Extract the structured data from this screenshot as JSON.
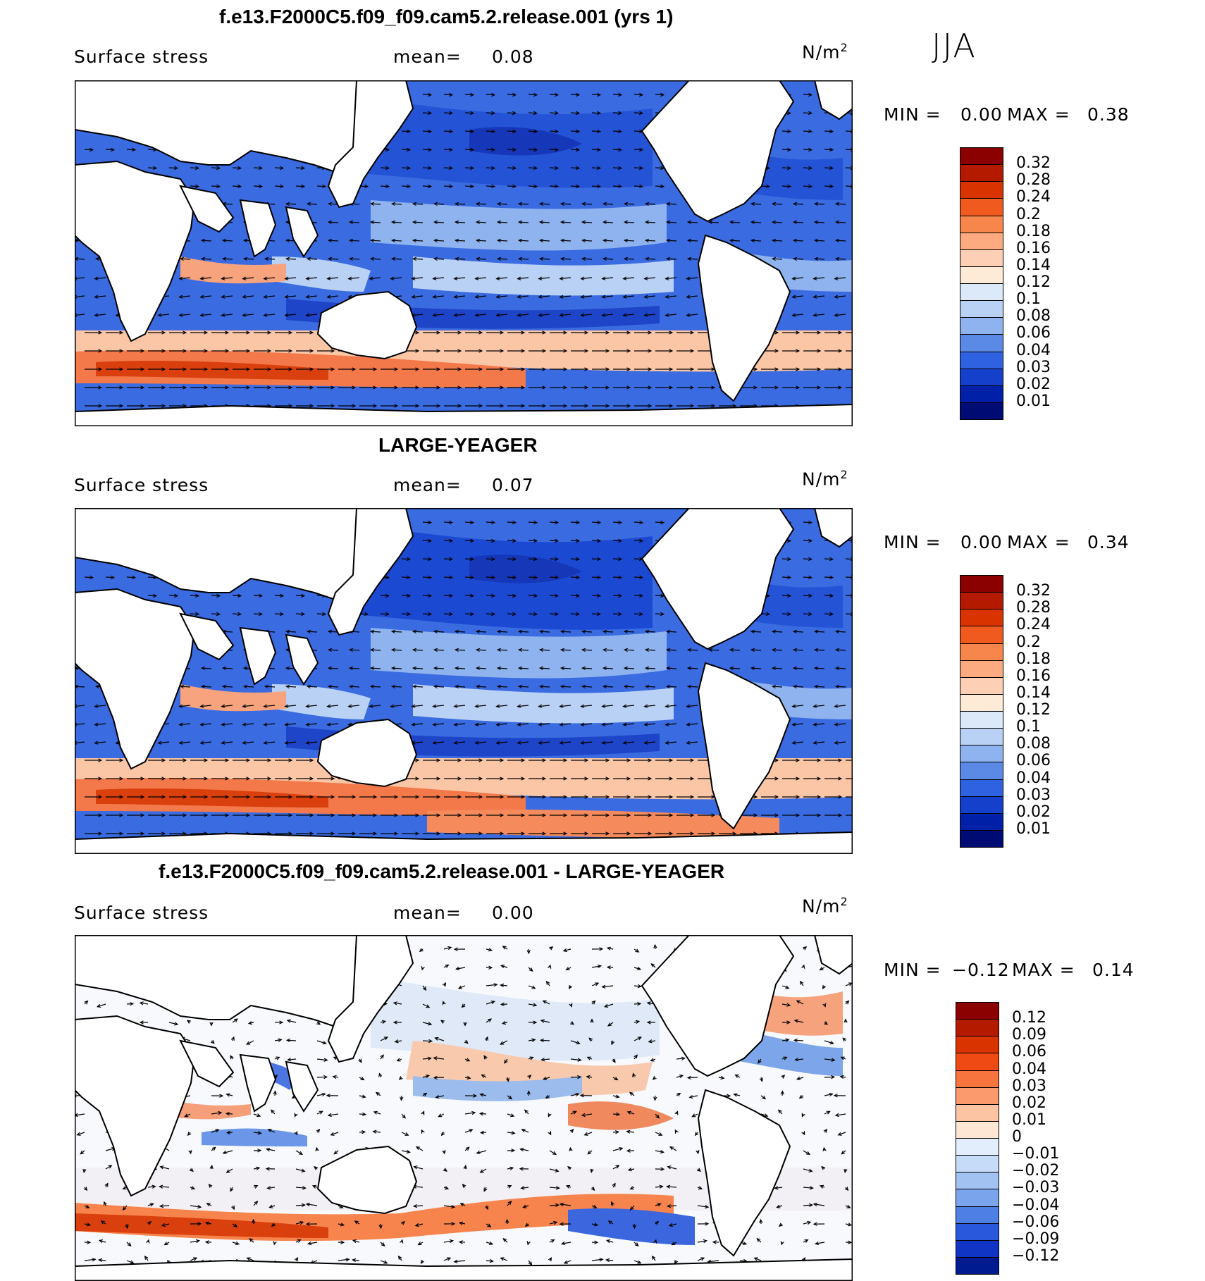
{
  "season": "JJA",
  "panels": [
    {
      "title": "f.e13.F2000C5.f09_f09.cam5.2.release.001 (yrs 1)",
      "variable": "Surface stress",
      "mean_label": "mean=",
      "mean_value": "0.08",
      "units": "N/m",
      "units_sup": "2",
      "min_label": "MIN =",
      "min_value": "0.00",
      "max_label": "MAX =",
      "max_value": "0.38",
      "colorbar": {
        "labels": [
          "0.32",
          "0.28",
          "0.24",
          "0.2",
          "0.18",
          "0.16",
          "0.14",
          "0.12",
          "0.1",
          "0.08",
          "0.06",
          "0.04",
          "0.03",
          "0.02",
          "0.01"
        ],
        "colors": [
          "#8b0000",
          "#b31a00",
          "#d93300",
          "#f05a1e",
          "#f7864d",
          "#fbab7f",
          "#fdd0b5",
          "#fdebd7",
          "#dbe9f9",
          "#b9d1f4",
          "#8fb3ee",
          "#5a8ae6",
          "#2f62e0",
          "#1440cc",
          "#0020a8",
          "#000c73"
        ]
      }
    },
    {
      "title": "LARGE-YEAGER",
      "variable": "Surface stress",
      "mean_label": "mean=",
      "mean_value": "0.07",
      "units": "N/m",
      "units_sup": "2",
      "min_label": "MIN =",
      "min_value": "0.00",
      "max_label": "MAX =",
      "max_value": "0.34",
      "colorbar": {
        "labels": [
          "0.32",
          "0.28",
          "0.24",
          "0.2",
          "0.18",
          "0.16",
          "0.14",
          "0.12",
          "0.1",
          "0.08",
          "0.06",
          "0.04",
          "0.03",
          "0.02",
          "0.01"
        ],
        "colors": [
          "#8b0000",
          "#b31a00",
          "#d93300",
          "#f05a1e",
          "#f7864d",
          "#fbab7f",
          "#fdd0b5",
          "#fdebd7",
          "#dbe9f9",
          "#b9d1f4",
          "#8fb3ee",
          "#5a8ae6",
          "#2f62e0",
          "#1440cc",
          "#0020a8",
          "#000c73"
        ]
      }
    },
    {
      "title": "f.e13.F2000C5.f09_f09.cam5.2.release.001 - LARGE-YEAGER",
      "variable": "Surface stress",
      "mean_label": "mean=",
      "mean_value": "0.00",
      "units": "N/m",
      "units_sup": "2",
      "min_label": "MIN =",
      "min_value": "−0.12",
      "max_label": "MAX =",
      "max_value": "0.14",
      "colorbar": {
        "labels": [
          "0.12",
          "0.09",
          "0.06",
          "0.04",
          "0.03",
          "0.02",
          "0.01",
          "0",
          "−0.01",
          "−0.02",
          "−0.03",
          "−0.04",
          "−0.06",
          "−0.09",
          "−0.12"
        ],
        "colors": [
          "#8b0000",
          "#b31a00",
          "#d93300",
          "#f04a14",
          "#f7743e",
          "#fb9a6d",
          "#fdc4a3",
          "#fde6d4",
          "#e2eefb",
          "#c6dbf7",
          "#a2c2f1",
          "#7aa4ec",
          "#4d7fe5",
          "#2a58dc",
          "#1034c4",
          "#001a8f"
        ]
      }
    }
  ]
}
